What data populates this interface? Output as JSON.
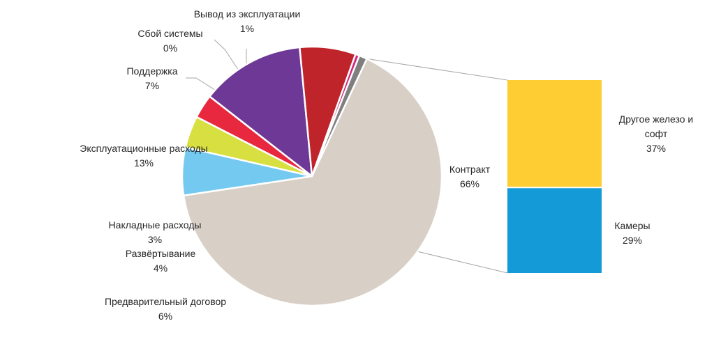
{
  "chart_data": {
    "type": "pie",
    "title": "",
    "slices": [
      {
        "name": "Контракт",
        "value": 66,
        "label": "66%",
        "color": "#d8cfc6"
      },
      {
        "name": "Предварительный договор",
        "value": 6,
        "label": "6%",
        "color": "#74c9f0"
      },
      {
        "name": "Развёртывание",
        "value": 4,
        "label": "4%",
        "color": "#d7df41"
      },
      {
        "name": "Накладные расходы",
        "value": 3,
        "label": "3%",
        "color": "#e8283f"
      },
      {
        "name": "Эксплуатационные расходы",
        "value": 13,
        "label": "13%",
        "color": "#6e3996"
      },
      {
        "name": "Поддержка",
        "value": 7,
        "label": "7%",
        "color": "#c0242b"
      },
      {
        "name": "Сбой системы",
        "value": 0.5,
        "label": "0%",
        "color": "#d4267e"
      },
      {
        "name": "Вывод из эксплуатации",
        "value": 1,
        "label": "1%",
        "color": "#7f7f7f"
      }
    ],
    "breakdown_of": "Контракт",
    "breakdown": [
      {
        "name_lines": [
          "Другое железо и",
          "софт"
        ],
        "value": 37,
        "label": "37%",
        "color": "#fecc33"
      },
      {
        "name_lines": [
          "Камеры"
        ],
        "value": 29,
        "label": "29%",
        "color": "#159ad8"
      }
    ]
  }
}
